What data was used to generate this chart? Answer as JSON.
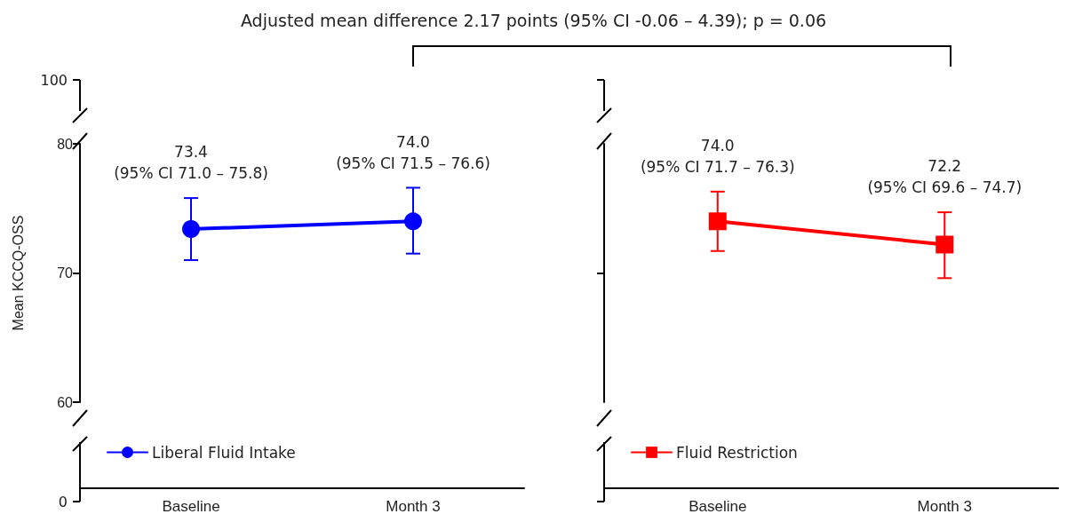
{
  "chart_data": [
    {
      "type": "line",
      "title": "Adjusted mean difference 2.17 points (95% CI -0.06 – 4.39); p = 0.06",
      "ylabel": "Mean KCCQ-OSS",
      "categories": [
        "Baseline",
        "Month 3"
      ],
      "series": [
        {
          "name": "Liberal Fluid Intake",
          "color": "#0000ff",
          "values": [
            73.4,
            74.0
          ],
          "errors": [
            [
              71.0,
              75.8
            ],
            [
              71.5,
              76.6
            ]
          ],
          "value_labels": [
            "73.4\n(95% CI 71.0 – 75.8)",
            "74.0\n(95% CI 71.5 – 76.6)"
          ]
        }
      ],
      "ylim": [
        60,
        80
      ],
      "yticks": [
        60,
        70,
        80
      ],
      "annotations": [
        "100",
        "0"
      ],
      "marker": "circle",
      "line_style": "solid",
      "legend": "bottom left",
      "grid": false
    },
    {
      "type": "line",
      "categories": [
        "Baseline",
        "Month 3"
      ],
      "series": [
        {
          "name": "Fluid Restriction",
          "color": "#ff0000",
          "values": [
            74.0,
            72.2
          ],
          "errors": [
            [
              71.7,
              76.3
            ],
            [
              69.6,
              74.7
            ]
          ],
          "value_labels": [
            "74.0\n(95% CI 71.7 – 76.3)",
            "72.2\n(95% CI 69.6 – 74.7)"
          ]
        }
      ],
      "ylim": [
        60,
        80
      ],
      "yticks": [
        {
          "value": 70,
          "label": null
        }
      ],
      "tick_labels": "x",
      "marker": "square",
      "line_style": "solid",
      "legend": "bottom left",
      "grid": false
    }
  ]
}
